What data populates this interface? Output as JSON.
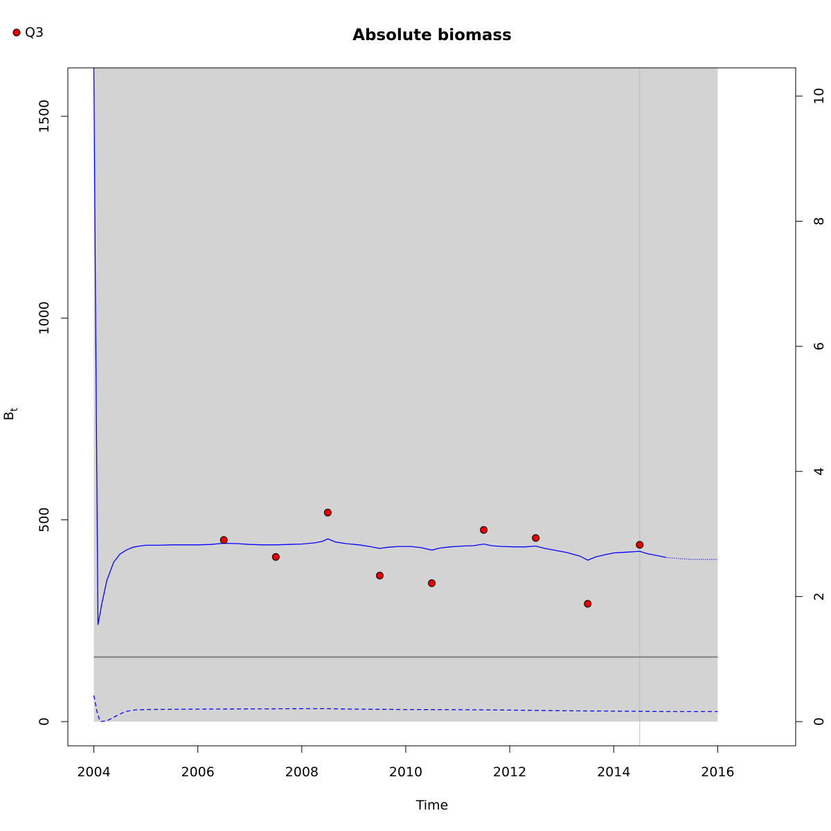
{
  "chart_data": {
    "type": "line",
    "title": "Absolute biomass",
    "xlabel": "Time",
    "ylabel": "B",
    "ylabel_subscript": "t",
    "xlim": [
      2003.5,
      2017.5
    ],
    "ylim": [
      -60,
      1620
    ],
    "y2lim": [
      -0.387,
      10.452
    ],
    "x_ticks": [
      2004,
      2006,
      2008,
      2010,
      2012,
      2014,
      2016
    ],
    "x_tick_labels": [
      "2004",
      "2006",
      "2008",
      "2010",
      "2012",
      "2014",
      "2016"
    ],
    "y_ticks": [
      0,
      500,
      1000,
      1500
    ],
    "y_tick_labels": [
      "0",
      "500",
      "1000",
      "1500"
    ],
    "y2_ticks": [
      0,
      2,
      4,
      6,
      8,
      10
    ],
    "y2_tick_labels": [
      "0",
      "2",
      "4",
      "6",
      "8",
      "10"
    ],
    "legend": {
      "position": "top-left",
      "entries": [
        {
          "label": "Q3",
          "color": "#e50000"
        }
      ]
    },
    "shaded_region": {
      "x": [
        2004,
        2016
      ],
      "y": [
        0,
        1620
      ],
      "color": "#d3d3d3"
    },
    "reference_line": {
      "y": 160,
      "color": "#808080"
    },
    "vertical_marker": {
      "x": 2014.5,
      "color": "#bdbdbd"
    },
    "colors": {
      "estimate": "#0000ff",
      "observations": "#e50000"
    },
    "series": [
      {
        "name": "",
        "style": "solid",
        "x": [
          2004.0,
          2004.04,
          2004.08,
          2004.15,
          2004.25,
          2004.38,
          2004.5,
          2004.62,
          2004.75,
          2004.88,
          2005.0,
          2005.25,
          2005.5,
          2005.75,
          2006.0,
          2006.25,
          2006.5,
          2006.75,
          2007.0,
          2007.25,
          2007.5,
          2007.75,
          2008.0,
          2008.25,
          2008.4,
          2008.5,
          2008.65,
          2008.85,
          2009.1,
          2009.3,
          2009.5,
          2009.65,
          2009.85,
          2010.1,
          2010.3,
          2010.5,
          2010.65,
          2010.85,
          2011.1,
          2011.3,
          2011.5,
          2011.65,
          2011.85,
          2012.1,
          2012.3,
          2012.5,
          2012.65,
          2012.85,
          2013.1,
          2013.35,
          2013.5,
          2013.65,
          2013.85,
          2014.0,
          2014.25,
          2014.5,
          2014.65,
          2014.85,
          2015.0
        ],
        "y": [
          1620,
          900,
          240,
          290,
          350,
          395,
          415,
          425,
          432,
          435,
          437,
          437,
          438,
          438,
          438,
          439,
          442,
          441,
          439,
          438,
          438,
          439,
          440,
          443,
          447,
          453,
          445,
          441,
          438,
          434,
          429,
          432,
          434,
          434,
          431,
          425,
          430,
          433,
          435,
          436,
          440,
          436,
          434,
          433,
          433,
          435,
          430,
          425,
          419,
          410,
          400,
          408,
          414,
          418,
          420,
          422,
          416,
          411,
          407
        ]
      },
      {
        "name": "",
        "style": "dotted",
        "x": [
          2015.0,
          2015.25,
          2015.5,
          2015.75,
          2016.0
        ],
        "y": [
          407,
          404,
          402,
          402,
          402
        ]
      },
      {
        "name": "",
        "style": "dashed",
        "x": [
          2004.0,
          2004.06,
          2004.12,
          2004.25,
          2004.4,
          2004.6,
          2004.8,
          2005.0,
          2006.0,
          2007.0,
          2008.0,
          2008.5,
          2009.0,
          2010.0,
          2011.0,
          2012.0,
          2013.0,
          2014.0,
          2015.0,
          2016.0
        ],
        "y": [
          65,
          25,
          0,
          2,
          12,
          25,
          29,
          30,
          31,
          31.5,
          32,
          32,
          31,
          30,
          29.5,
          28.5,
          27,
          26,
          25,
          25
        ]
      },
      {
        "name": "Q3",
        "style": "points",
        "x": [
          2006.5,
          2007.5,
          2008.5,
          2009.5,
          2010.5,
          2011.5,
          2012.5,
          2013.5,
          2014.5
        ],
        "y": [
          450,
          408,
          518,
          362,
          343,
          475,
          455,
          292,
          438
        ]
      }
    ]
  }
}
